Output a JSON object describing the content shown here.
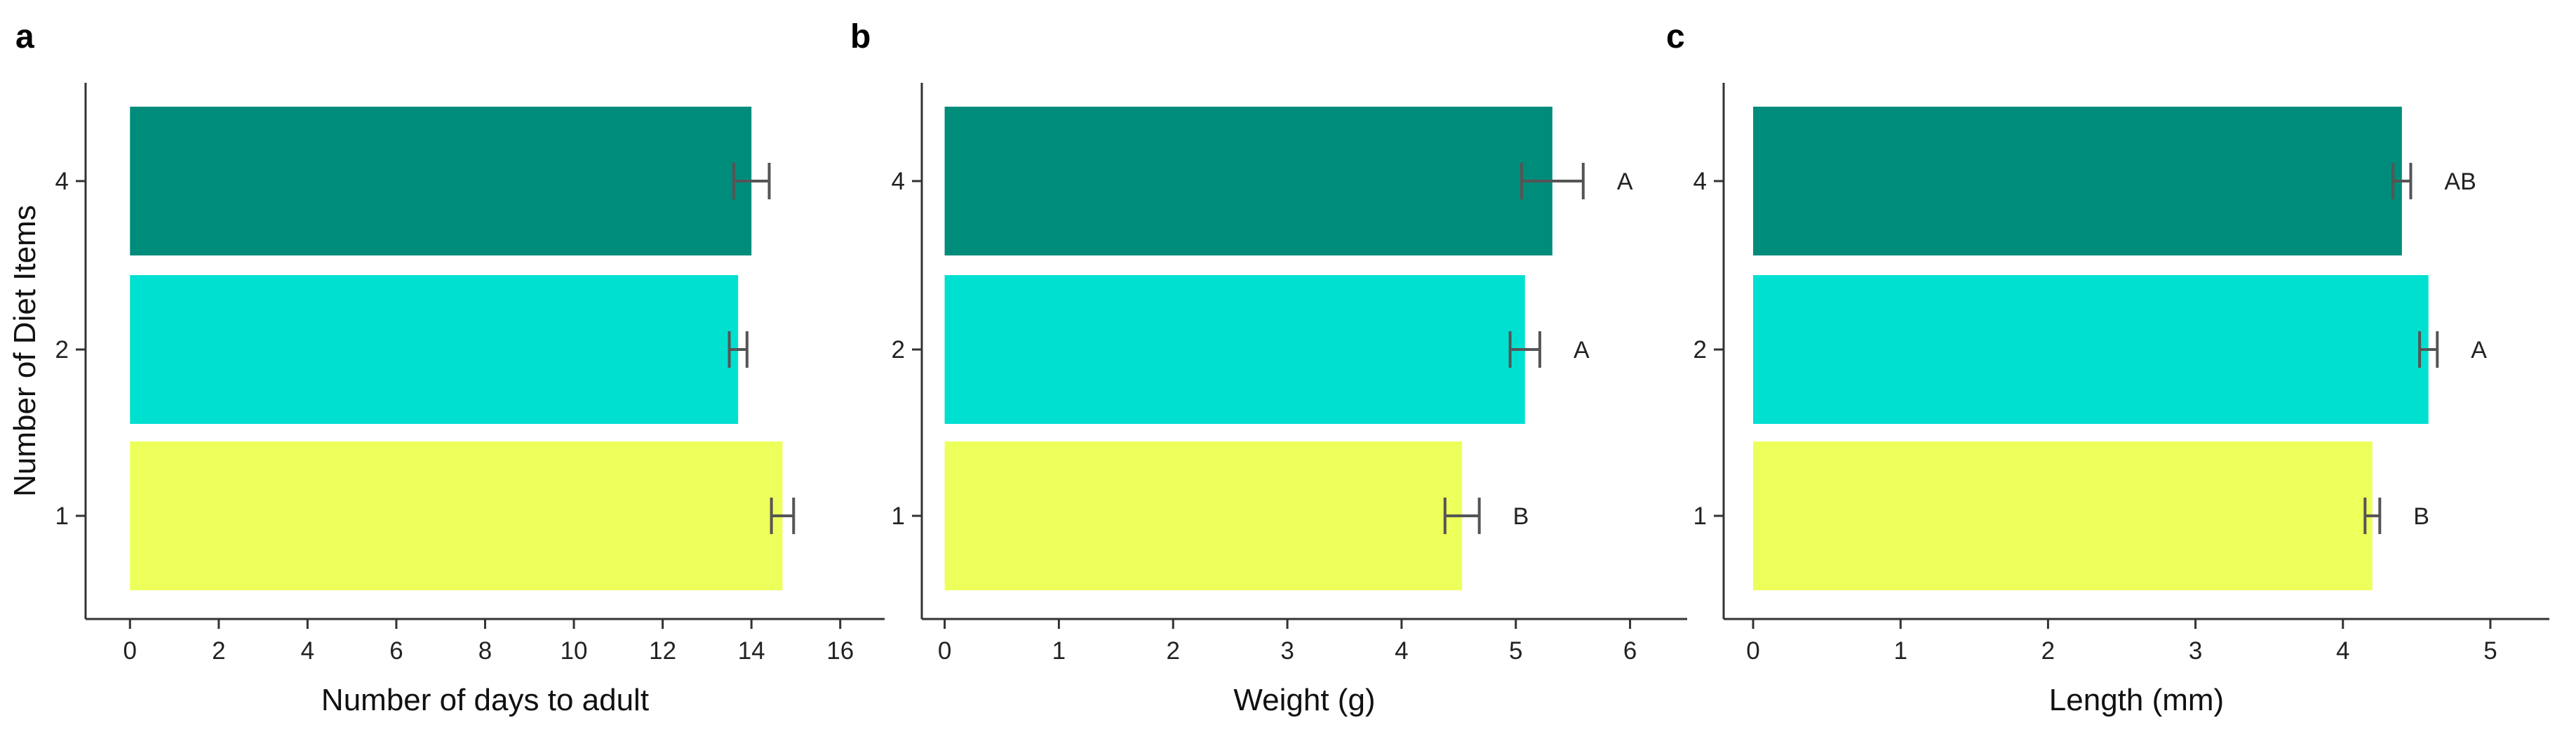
{
  "colors": {
    "item4": "#008c7b",
    "item2": "#00e0d1",
    "item1": "#edff5a",
    "axis": "#333333",
    "errorbar": "#555555"
  },
  "chart_data": [
    {
      "panel_letter": "a",
      "type": "bar",
      "orientation": "horizontal",
      "xlabel": "Number of days to adult",
      "ylabel": "Number of Diet Items",
      "categories": [
        "4",
        "2",
        "1"
      ],
      "values": [
        14.0,
        13.7,
        14.7
      ],
      "errors": [
        0.4,
        0.2,
        0.25
      ],
      "significance_letters": [
        "",
        "",
        ""
      ],
      "xlim": [
        -1,
        17
      ],
      "xticks": [
        0,
        2,
        4,
        6,
        8,
        10,
        12,
        14,
        16
      ],
      "grid": false,
      "legend": "none"
    },
    {
      "panel_letter": "b",
      "type": "bar",
      "orientation": "horizontal",
      "xlabel": "Weight (g)",
      "ylabel": "",
      "categories": [
        "4",
        "2",
        "1"
      ],
      "values": [
        5.32,
        5.08,
        4.53
      ],
      "errors": [
        0.27,
        0.13,
        0.15
      ],
      "significance_letters": [
        "A",
        "A",
        "B"
      ],
      "xlim": [
        -0.2,
        6.5
      ],
      "xticks": [
        0,
        1,
        2,
        3,
        4,
        5,
        6
      ],
      "grid": false,
      "legend": "none"
    },
    {
      "panel_letter": "c",
      "type": "bar",
      "orientation": "horizontal",
      "xlabel": "Length (mm)",
      "ylabel": "",
      "categories": [
        "4",
        "2",
        "1"
      ],
      "values": [
        4.4,
        4.58,
        4.2
      ],
      "errors": [
        0.06,
        0.06,
        0.05
      ],
      "significance_letters": [
        "AB",
        "A",
        "B"
      ],
      "xlim": [
        -0.2,
        5.4
      ],
      "xticks": [
        0,
        1,
        2,
        3,
        4,
        5
      ],
      "grid": false,
      "legend": "none"
    }
  ]
}
